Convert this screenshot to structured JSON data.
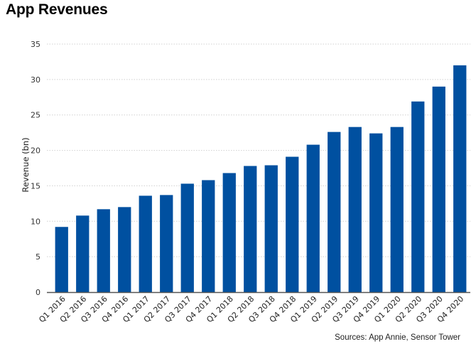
{
  "title": "App Revenues",
  "source": "Sources: App Annie, Sensor Tower",
  "colors": {
    "bar": "#0050A0",
    "grid": "#d0d0d0",
    "axis": "#555555"
  },
  "chart_data": {
    "type": "bar",
    "title": "App Revenues",
    "xlabel": "",
    "ylabel": "Revenue (bn)",
    "ylim": [
      0,
      35
    ],
    "yticks": [
      0,
      5,
      10,
      15,
      20,
      25,
      30,
      35
    ],
    "grid": true,
    "legend": "none",
    "categories": [
      "Q1 2016",
      "Q2 2016",
      "Q3 2016",
      "Q4 2016",
      "Q1 2017",
      "Q2 2017",
      "Q3 2017",
      "Q4 2017",
      "Q1 2018",
      "Q2 2018",
      "Q3 2018",
      "Q4 2018",
      "Q1 2019",
      "Q2 2019",
      "Q3 2019",
      "Q4 2019",
      "Q1 2020",
      "Q2 2020",
      "Q3 2020",
      "Q4 2020"
    ],
    "values": [
      9.2,
      10.8,
      11.7,
      12.0,
      13.6,
      13.7,
      15.3,
      15.8,
      16.8,
      17.8,
      17.9,
      19.1,
      20.8,
      22.6,
      23.3,
      22.4,
      23.3,
      26.9,
      29.0,
      32.0
    ]
  }
}
